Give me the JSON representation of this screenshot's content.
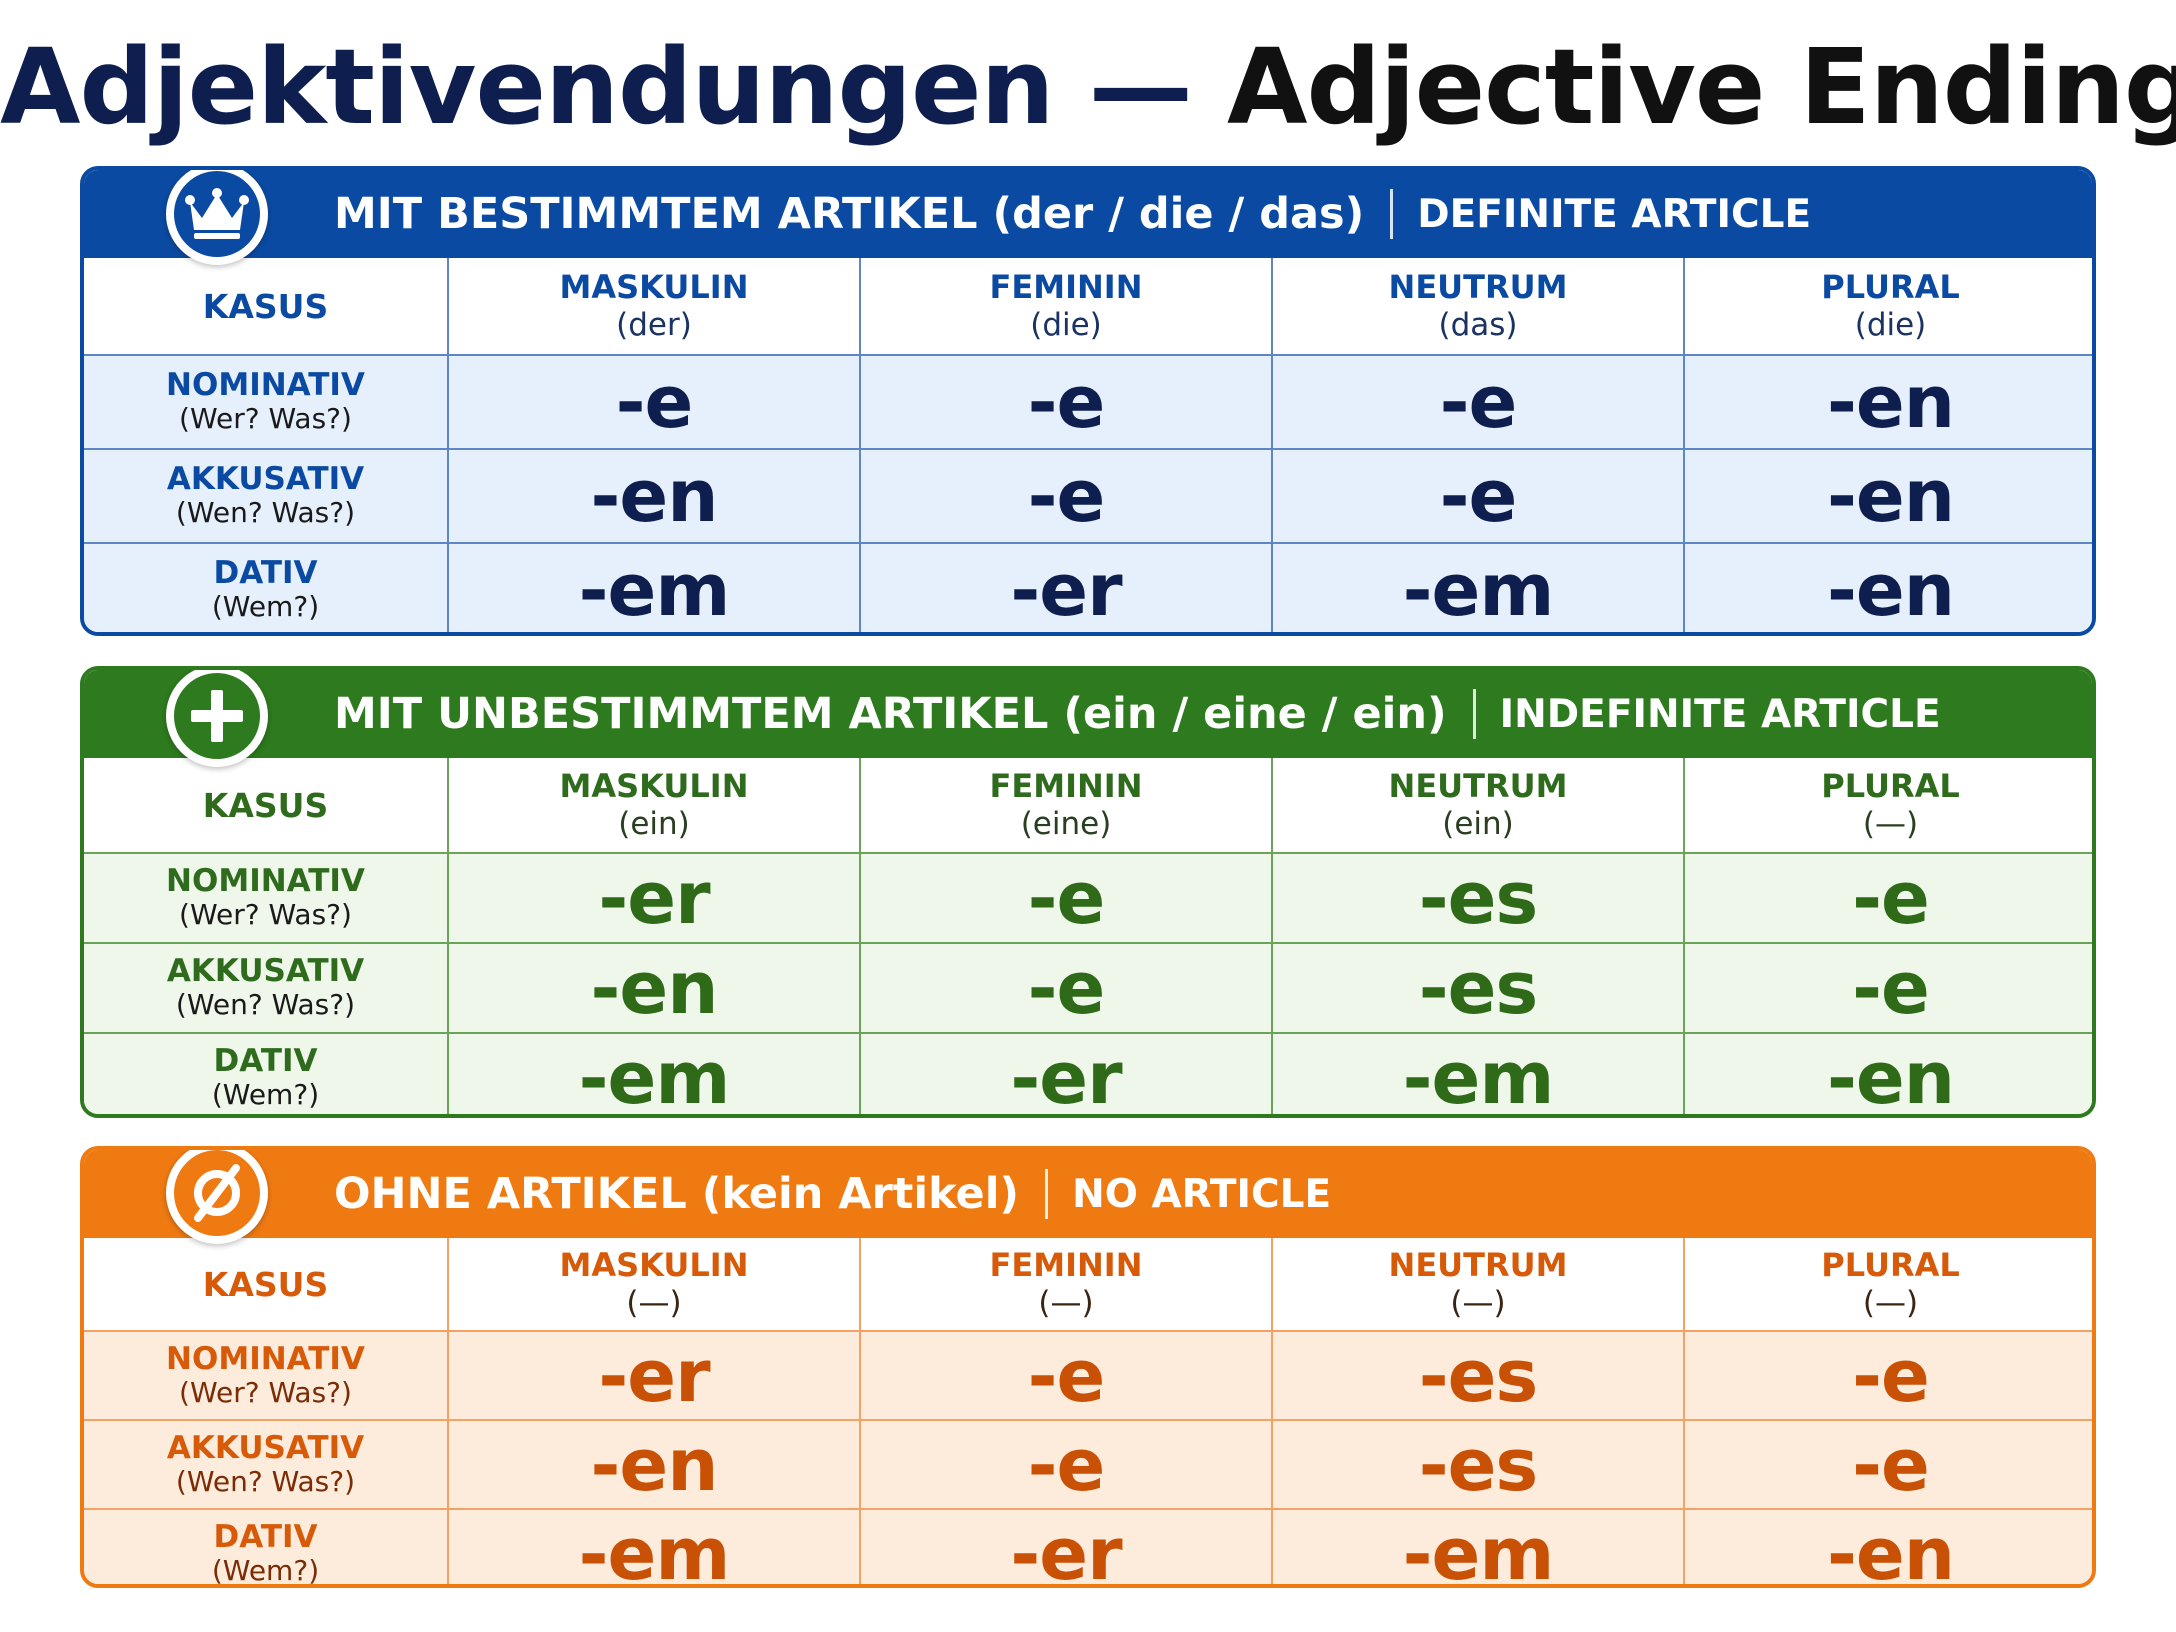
{
  "title": {
    "german": "Adjektivendungen",
    "separator": "—",
    "english": "Adjective Endings"
  },
  "colors": {
    "definite": "#0b4aa2",
    "indefinite": "#2e7a1e",
    "none": "#f07a12"
  },
  "sections": [
    {
      "icon": "crown-icon",
      "title": "MIT BESTIMMTEM ARTIKEL (der / die / das)",
      "subtitle": "DEFINITE ARTICLE",
      "kasus_label": "KASUS",
      "columns": [
        {
          "gender": "MASKULIN",
          "article": "(der)"
        },
        {
          "gender": "FEMININ",
          "article": "(die)"
        },
        {
          "gender": "NEUTRUM",
          "article": "(das)"
        },
        {
          "gender": "PLURAL",
          "article": "(die)"
        }
      ],
      "rows": [
        {
          "case": "NOMINATIV",
          "question": "(Wer? Was?)",
          "endings": [
            "-e",
            "-e",
            "-e",
            "-en"
          ]
        },
        {
          "case": "AKKUSATIV",
          "question": "(Wen? Was?)",
          "endings": [
            "-en",
            "-e",
            "-e",
            "-en"
          ]
        },
        {
          "case": "DATIV",
          "question": "(Wem?)",
          "endings": [
            "-em",
            "-er",
            "-em",
            "-en"
          ]
        }
      ]
    },
    {
      "icon": "plus-icon",
      "title": "MIT UNBESTIMMTEM ARTIKEL (ein / eine / ein)",
      "subtitle": "INDEFINITE ARTICLE",
      "kasus_label": "KASUS",
      "columns": [
        {
          "gender": "MASKULIN",
          "article": "(ein)"
        },
        {
          "gender": "FEMININ",
          "article": "(eine)"
        },
        {
          "gender": "NEUTRUM",
          "article": "(ein)"
        },
        {
          "gender": "PLURAL",
          "article": "(—)"
        }
      ],
      "rows": [
        {
          "case": "NOMINATIV",
          "question": "(Wer? Was?)",
          "endings": [
            "-er",
            "-e",
            "-es",
            "-e"
          ]
        },
        {
          "case": "AKKUSATIV",
          "question": "(Wen? Was?)",
          "endings": [
            "-en",
            "-e",
            "-es",
            "-e"
          ]
        },
        {
          "case": "DATIV",
          "question": "(Wem?)",
          "endings": [
            "-em",
            "-er",
            "-em",
            "-en"
          ]
        }
      ]
    },
    {
      "icon": "empty-set-icon",
      "title": "OHNE ARTIKEL (kein Artikel)",
      "subtitle": "NO ARTICLE",
      "kasus_label": "KASUS",
      "columns": [
        {
          "gender": "MASKULIN",
          "article": "(—)"
        },
        {
          "gender": "FEMININ",
          "article": "(—)"
        },
        {
          "gender": "NEUTRUM",
          "article": "(—)"
        },
        {
          "gender": "PLURAL",
          "article": "(—)"
        }
      ],
      "rows": [
        {
          "case": "NOMINATIV",
          "question": "(Wer? Was?)",
          "endings": [
            "-er",
            "-e",
            "-es",
            "-e"
          ]
        },
        {
          "case": "AKKUSATIV",
          "question": "(Wen? Was?)",
          "endings": [
            "-en",
            "-e",
            "-es",
            "-e"
          ]
        },
        {
          "case": "DATIV",
          "question": "(Wem?)",
          "endings": [
            "-em",
            "-er",
            "-em",
            "-en"
          ]
        }
      ]
    }
  ]
}
